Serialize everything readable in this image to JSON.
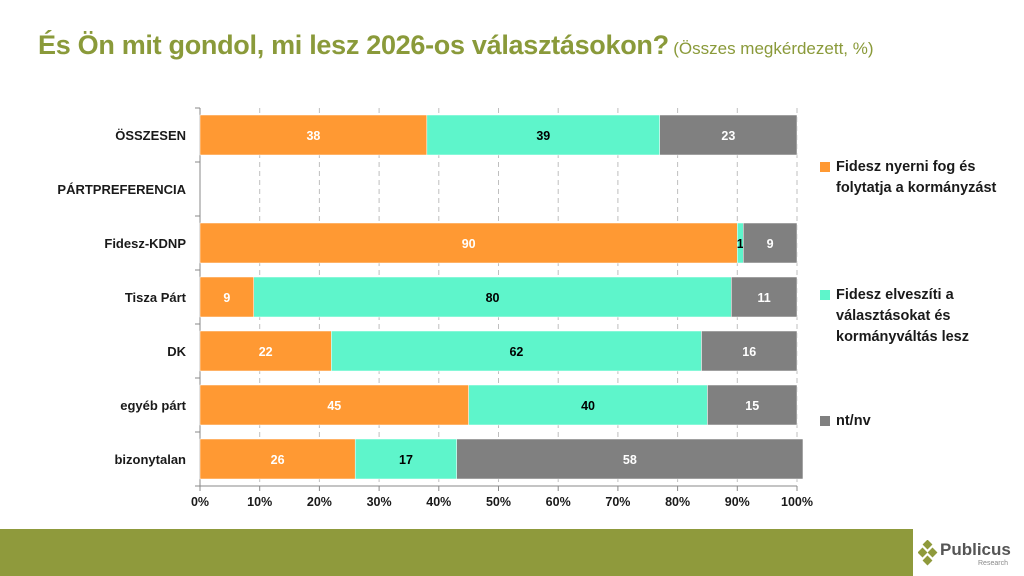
{
  "title": {
    "main": "És Ön mit gondol, mi lesz 2026-os választásokon?",
    "sub": "(Összes megkérdezett, %)"
  },
  "colors": {
    "fidesz_win": "#ff9933",
    "fidesz_lose": "#5ef5cb",
    "dk_na": "#808080",
    "title": "#8a9a3a",
    "footer_band": "#8f9a3c"
  },
  "chart_data": {
    "type": "bar",
    "orientation": "horizontal",
    "stacked": "percent",
    "title": "És Ön mit gondol, mi lesz 2026-os választásokon? (Összes megkérdezett, %)",
    "xlabel": "",
    "ylabel": "",
    "xlim": [
      0,
      100
    ],
    "x_ticks": [
      "0%",
      "10%",
      "20%",
      "30%",
      "40%",
      "50%",
      "60%",
      "70%",
      "80%",
      "90%",
      "100%"
    ],
    "grid": "vertical dashed",
    "legend_position": "right",
    "categories": [
      "ÖSSZESEN",
      "PÁRTPREFERENCIA",
      "Fidesz-KDNP",
      "Tisza Párt",
      "DK",
      "egyéb párt",
      "bizonytalan"
    ],
    "series": [
      {
        "name": "Fidesz nyerni fog és folytatja a kormányzást",
        "color": "#ff9933",
        "label_color": "#ffffff",
        "values": [
          38,
          null,
          90,
          9,
          22,
          45,
          26
        ]
      },
      {
        "name": "Fidesz elveszíti a választásokat és kormányváltás lesz",
        "color": "#5ef5cb",
        "label_color": "#000000",
        "values": [
          39,
          null,
          1,
          80,
          62,
          40,
          17
        ]
      },
      {
        "name": "nt/nv",
        "color": "#808080",
        "label_color": "#ffffff",
        "values": [
          23,
          null,
          9,
          11,
          16,
          15,
          58
        ]
      }
    ]
  },
  "legend": [
    "Fidesz nyerni fog és folytatja a kormányzást",
    "Fidesz elveszíti a választásokat és kormányváltás lesz",
    "nt/nv"
  ],
  "logo": {
    "name": "Publicus",
    "tagline": "Research"
  }
}
